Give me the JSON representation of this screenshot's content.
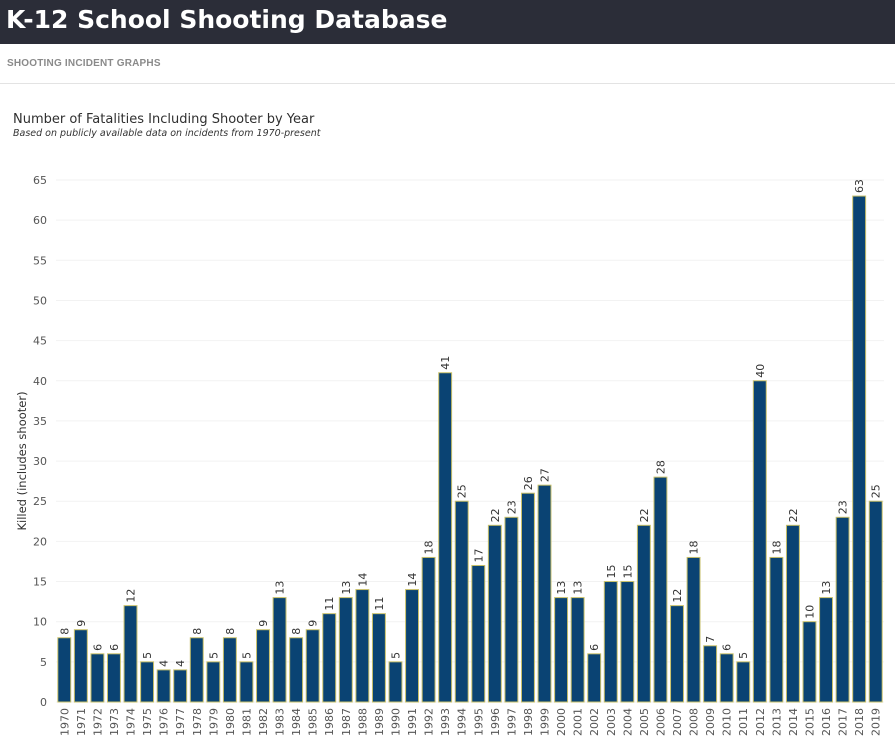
{
  "header": {
    "app_title": "K-12 School Shooting Database"
  },
  "nav": {
    "section_label": "SHOOTING INCIDENT GRAPHS"
  },
  "colors": {
    "header_bg": "#2b2d38",
    "bar_fill": "#0a4373",
    "bar_stroke": "#c8c06a"
  },
  "chart_data": {
    "type": "bar",
    "title": "Number of Fatalities Including Shooter by Year",
    "subtitle": "Based on publicly available data on incidents from 1970-present",
    "xlabel": "",
    "ylabel": "Killed (includes shooter)",
    "ylim": [
      0,
      65
    ],
    "yticks": [
      0,
      5,
      10,
      15,
      20,
      25,
      30,
      35,
      40,
      45,
      50,
      55,
      60,
      65
    ],
    "grid": true,
    "categories": [
      "1970",
      "1971",
      "1972",
      "1973",
      "1974",
      "1975",
      "1976",
      "1977",
      "1978",
      "1979",
      "1980",
      "1981",
      "1982",
      "1983",
      "1984",
      "1985",
      "1986",
      "1987",
      "1988",
      "1989",
      "1990",
      "1991",
      "1992",
      "1993",
      "1994",
      "1995",
      "1996",
      "1997",
      "1998",
      "1999",
      "2000",
      "2001",
      "2002",
      "2003",
      "2004",
      "2005",
      "2006",
      "2007",
      "2008",
      "2009",
      "2010",
      "2011",
      "2012",
      "2013",
      "2014",
      "2015",
      "2016",
      "2017",
      "2018",
      "2019"
    ],
    "values": [
      8,
      9,
      6,
      6,
      12,
      5,
      4,
      4,
      8,
      5,
      8,
      5,
      9,
      13,
      8,
      9,
      11,
      13,
      14,
      11,
      5,
      14,
      18,
      41,
      25,
      17,
      22,
      23,
      26,
      27,
      13,
      13,
      6,
      15,
      15,
      22,
      28,
      12,
      18,
      7,
      6,
      5,
      40,
      18,
      22,
      10,
      13,
      23,
      63,
      25
    ],
    "data_labels": true
  }
}
